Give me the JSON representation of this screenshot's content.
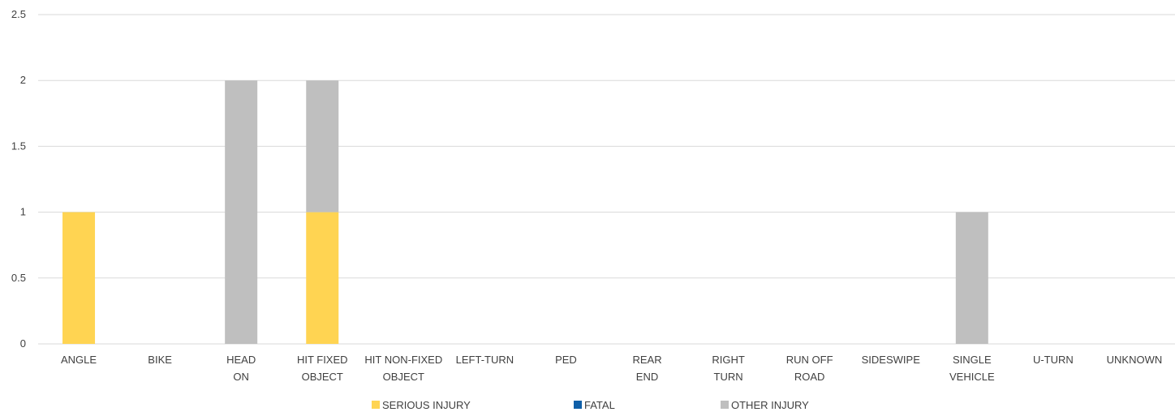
{
  "chart_data": {
    "type": "bar",
    "stacked": true,
    "title": "",
    "xlabel": "",
    "ylabel": "",
    "ylim": [
      0,
      2.5
    ],
    "yticks": [
      "0",
      "0.5",
      "1",
      "1.5",
      "2",
      "2.5"
    ],
    "grid": true,
    "legend_position": "bottom",
    "categories": [
      [
        "ANGLE"
      ],
      [
        "BIKE"
      ],
      [
        "HEAD",
        "ON"
      ],
      [
        "HIT FIXED",
        "OBJECT"
      ],
      [
        "HIT NON-FIXED",
        "OBJECT"
      ],
      [
        "LEFT-TURN"
      ],
      [
        "PED"
      ],
      [
        "REAR",
        "END"
      ],
      [
        "RIGHT",
        "TURN"
      ],
      [
        "RUN OFF",
        "ROAD"
      ],
      [
        "SIDESWIPE"
      ],
      [
        "SINGLE",
        "VEHICLE"
      ],
      [
        "U-TURN"
      ],
      [
        "UNKNOWN"
      ]
    ],
    "series": [
      {
        "name": "SERIOUS INJURY",
        "color": "#FFD452",
        "values": [
          1,
          0,
          0,
          1,
          0,
          0,
          0,
          0,
          0,
          0,
          0,
          0,
          0,
          0
        ]
      },
      {
        "name": "FATAL",
        "color": "#0F5FA8",
        "values": [
          0,
          0,
          0,
          0,
          0,
          0,
          0,
          0,
          0,
          0,
          0,
          0,
          0,
          0
        ]
      },
      {
        "name": "OTHER INJURY",
        "color": "#BFBFBF",
        "values": [
          0,
          0,
          2,
          1,
          0,
          0,
          0,
          0,
          0,
          0,
          0,
          1,
          0,
          0
        ]
      }
    ],
    "colors": {
      "grid": "#D9D9D9",
      "text": "#404040"
    }
  }
}
